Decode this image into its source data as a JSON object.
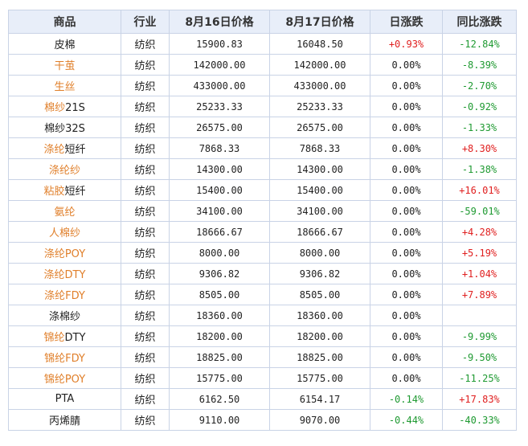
{
  "header": [
    "商品",
    "行业",
    "8月16日价格",
    "8月17日价格",
    "日涨跌",
    "同比涨跌"
  ],
  "colors": {
    "highlight_text": "#e07f2a",
    "up": "#e02020",
    "down": "#1f9a32"
  },
  "rows": [
    {
      "name_hl": "",
      "name_rest": "皮棉",
      "industry": "纺织",
      "p16": "15900.83",
      "p17": "16048.50",
      "daily": "+0.93%",
      "yoy": "-12.84%"
    },
    {
      "name_hl": "干茧",
      "name_rest": "",
      "industry": "纺织",
      "p16": "142000.00",
      "p17": "142000.00",
      "daily": "0.00%",
      "yoy": "-8.39%"
    },
    {
      "name_hl": "生丝",
      "name_rest": "",
      "industry": "纺织",
      "p16": "433000.00",
      "p17": "433000.00",
      "daily": "0.00%",
      "yoy": "-2.70%"
    },
    {
      "name_hl": "棉纱",
      "name_rest": "21S",
      "industry": "纺织",
      "p16": "25233.33",
      "p17": "25233.33",
      "daily": "0.00%",
      "yoy": "-0.92%"
    },
    {
      "name_hl": "",
      "name_rest": "棉纱32S",
      "industry": "纺织",
      "p16": "26575.00",
      "p17": "26575.00",
      "daily": "0.00%",
      "yoy": "-1.33%"
    },
    {
      "name_hl": "涤纶",
      "name_rest": "短纤",
      "industry": "纺织",
      "p16": "7868.33",
      "p17": "7868.33",
      "daily": "0.00%",
      "yoy": "+8.30%"
    },
    {
      "name_hl": "涤纶纱",
      "name_rest": "",
      "industry": "纺织",
      "p16": "14300.00",
      "p17": "14300.00",
      "daily": "0.00%",
      "yoy": "-1.38%"
    },
    {
      "name_hl": "粘胶",
      "name_rest": "短纤",
      "industry": "纺织",
      "p16": "15400.00",
      "p17": "15400.00",
      "daily": "0.00%",
      "yoy": "+16.01%"
    },
    {
      "name_hl": "氨纶",
      "name_rest": "",
      "industry": "纺织",
      "p16": "34100.00",
      "p17": "34100.00",
      "daily": "0.00%",
      "yoy": "-59.01%"
    },
    {
      "name_hl": "人棉纱",
      "name_rest": "",
      "industry": "纺织",
      "p16": "18666.67",
      "p17": "18666.67",
      "daily": "0.00%",
      "yoy": "+4.28%"
    },
    {
      "name_hl": "涤纶POY",
      "name_rest": "",
      "industry": "纺织",
      "p16": "8000.00",
      "p17": "8000.00",
      "daily": "0.00%",
      "yoy": "+5.19%"
    },
    {
      "name_hl": "涤纶DTY",
      "name_rest": "",
      "industry": "纺织",
      "p16": "9306.82",
      "p17": "9306.82",
      "daily": "0.00%",
      "yoy": "+1.04%"
    },
    {
      "name_hl": "涤纶FDY",
      "name_rest": "",
      "industry": "纺织",
      "p16": "8505.00",
      "p17": "8505.00",
      "daily": "0.00%",
      "yoy": "+7.89%"
    },
    {
      "name_hl": "",
      "name_rest": "涤棉纱",
      "industry": "纺织",
      "p16": "18360.00",
      "p17": "18360.00",
      "daily": "0.00%",
      "yoy": ""
    },
    {
      "name_hl": "锦纶",
      "name_rest": "DTY",
      "industry": "纺织",
      "p16": "18200.00",
      "p17": "18200.00",
      "daily": "0.00%",
      "yoy": "-9.99%"
    },
    {
      "name_hl": "锦纶FDY",
      "name_rest": "",
      "industry": "纺织",
      "p16": "18825.00",
      "p17": "18825.00",
      "daily": "0.00%",
      "yoy": "-9.50%"
    },
    {
      "name_hl": "锦纶POY",
      "name_rest": "",
      "industry": "纺织",
      "p16": "15775.00",
      "p17": "15775.00",
      "daily": "0.00%",
      "yoy": "-11.25%"
    },
    {
      "name_hl": "",
      "name_rest": "PTA",
      "industry": "纺织",
      "p16": "6162.50",
      "p17": "6154.17",
      "daily": "-0.14%",
      "yoy": "+17.83%"
    },
    {
      "name_hl": "",
      "name_rest": "丙烯腈",
      "industry": "纺织",
      "p16": "9110.00",
      "p17": "9070.00",
      "daily": "-0.44%",
      "yoy": "-40.33%"
    }
  ]
}
